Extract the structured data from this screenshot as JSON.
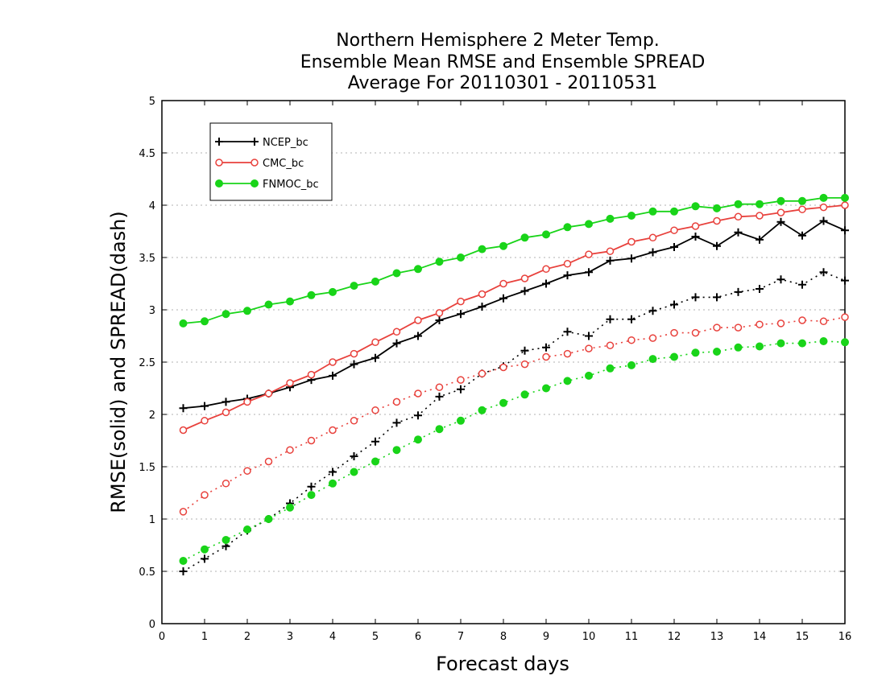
{
  "chart_data": {
    "type": "line",
    "title_lines": [
      "Northern Hemisphere 2 Meter Temp.",
      "Ensemble Mean RMSE and Ensemble SPREAD",
      "Average For 20110301 - 20110531"
    ],
    "xlabel": "Forecast days",
    "ylabel": "RMSE(solid) and SPREAD(dash)",
    "xlim": [
      0,
      16
    ],
    "ylim": [
      0,
      5
    ],
    "x_ticks": [
      "0",
      "1",
      "2",
      "3",
      "4",
      "5",
      "6",
      "7",
      "8",
      "9",
      "10",
      "11",
      "12",
      "13",
      "14",
      "15",
      "16"
    ],
    "y_ticks": [
      "0",
      "0.5",
      "1",
      "1.5",
      "2",
      "2.5",
      "3",
      "3.5",
      "4",
      "4.5",
      "5"
    ],
    "grid": "horizontal dotted",
    "legend_position": "top-left",
    "x": [
      0.5,
      1,
      1.5,
      2,
      2.5,
      3,
      3.5,
      4,
      4.5,
      5,
      5.5,
      6,
      6.5,
      7,
      7.5,
      8,
      8.5,
      9,
      9.5,
      10,
      10.5,
      11,
      11.5,
      12,
      12.5,
      13,
      13.5,
      14,
      14.5,
      15,
      15.5,
      16
    ],
    "series": [
      {
        "name": "NCEP_bc",
        "color": "#000000",
        "marker": "plus",
        "rmse": [
          2.06,
          2.08,
          2.12,
          2.15,
          2.2,
          2.26,
          2.33,
          2.37,
          2.48,
          2.54,
          2.68,
          2.75,
          2.9,
          2.96,
          3.03,
          3.11,
          3.18,
          3.25,
          3.33,
          3.36,
          3.47,
          3.49,
          3.55,
          3.6,
          3.7,
          3.61,
          3.74,
          3.67,
          3.84,
          3.71,
          3.85,
          3.76
        ],
        "spread": [
          0.5,
          0.62,
          0.74,
          0.89,
          1.0,
          1.15,
          1.31,
          1.45,
          1.6,
          1.74,
          1.92,
          1.99,
          2.17,
          2.24,
          2.39,
          2.46,
          2.61,
          2.64,
          2.79,
          2.75,
          2.91,
          2.91,
          2.99,
          3.05,
          3.12,
          3.12,
          3.17,
          3.2,
          3.29,
          3.24,
          3.36,
          3.28
        ]
      },
      {
        "name": "CMC_bc",
        "color": "#e8413c",
        "marker": "open-circle",
        "rmse": [
          1.85,
          1.94,
          2.02,
          2.12,
          2.2,
          2.3,
          2.38,
          2.5,
          2.58,
          2.69,
          2.79,
          2.9,
          2.97,
          3.08,
          3.15,
          3.25,
          3.3,
          3.39,
          3.44,
          3.53,
          3.56,
          3.65,
          3.69,
          3.76,
          3.8,
          3.85,
          3.89,
          3.9,
          3.93,
          3.96,
          3.98,
          4.0
        ],
        "spread": [
          1.07,
          1.23,
          1.34,
          1.46,
          1.55,
          1.66,
          1.75,
          1.85,
          1.94,
          2.04,
          2.12,
          2.2,
          2.26,
          2.33,
          2.39,
          2.45,
          2.48,
          2.55,
          2.58,
          2.63,
          2.66,
          2.71,
          2.73,
          2.78,
          2.78,
          2.83,
          2.83,
          2.86,
          2.87,
          2.9,
          2.89,
          2.93
        ]
      },
      {
        "name": "FNMOC_bc",
        "color": "#19d419",
        "marker": "filled-circle",
        "rmse": [
          2.87,
          2.89,
          2.96,
          2.99,
          3.05,
          3.08,
          3.14,
          3.17,
          3.23,
          3.27,
          3.35,
          3.39,
          3.46,
          3.5,
          3.58,
          3.61,
          3.69,
          3.72,
          3.79,
          3.82,
          3.87,
          3.9,
          3.94,
          3.94,
          3.99,
          3.97,
          4.01,
          4.01,
          4.04,
          4.04,
          4.07,
          4.07
        ],
        "spread": [
          0.6,
          0.71,
          0.8,
          0.9,
          1.0,
          1.11,
          1.23,
          1.34,
          1.45,
          1.55,
          1.66,
          1.76,
          1.86,
          1.94,
          2.04,
          2.11,
          2.19,
          2.25,
          2.32,
          2.37,
          2.44,
          2.47,
          2.53,
          2.55,
          2.59,
          2.6,
          2.64,
          2.65,
          2.68,
          2.68,
          2.7,
          2.69
        ]
      }
    ]
  }
}
